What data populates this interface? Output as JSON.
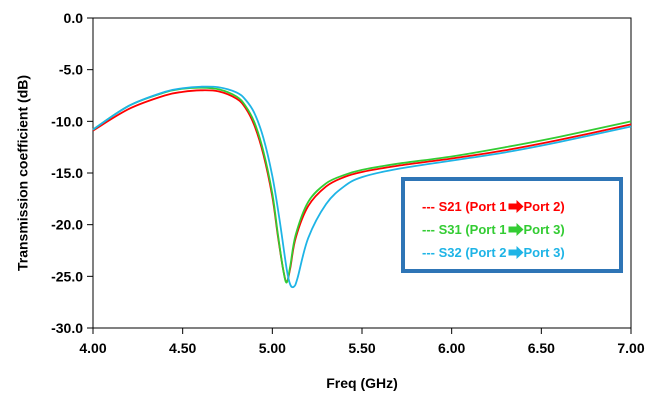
{
  "chart_data": {
    "type": "line",
    "xlabel": "Freq (GHz)",
    "ylabel": "Transmission coefficient (dB)",
    "xlim": [
      4.0,
      7.0
    ],
    "ylim": [
      -30.0,
      0.0
    ],
    "x_ticks": [
      "4.00",
      "4.50",
      "5.00",
      "5.50",
      "6.00",
      "6.50",
      "7.00"
    ],
    "y_ticks": [
      "0.0",
      "-5.0",
      "-10.0",
      "-15.0",
      "-20.0",
      "-25.0",
      "-30.0"
    ],
    "grid": false,
    "legend_placement": "right-center",
    "legend_border_color": "#2e75b6",
    "series": [
      {
        "label": "S21",
        "legend_prefix": "--- ",
        "legend_text": "S21 (Port 1",
        "legend_suffix": " Port 2)",
        "color": "#ff0000",
        "x": [
          4.0,
          4.2,
          4.4,
          4.5,
          4.6,
          4.7,
          4.8,
          4.85,
          4.9,
          4.95,
          5.0,
          5.03,
          5.06,
          5.08,
          5.1,
          5.13,
          5.2,
          5.3,
          5.4,
          5.5,
          5.7,
          6.0,
          6.3,
          6.6,
          7.0
        ],
        "y": [
          -10.9,
          -8.8,
          -7.5,
          -7.15,
          -7.0,
          -7.1,
          -7.8,
          -8.7,
          -10.4,
          -13.2,
          -17.3,
          -21.0,
          -24.3,
          -25.5,
          -24.2,
          -21.3,
          -18.2,
          -16.3,
          -15.4,
          -14.9,
          -14.3,
          -13.6,
          -12.8,
          -11.8,
          -10.3
        ]
      },
      {
        "label": "S31",
        "legend_prefix": "--- ",
        "legend_text": "S31 (Port 1",
        "legend_suffix": " Port 3)",
        "color": "#33cc33",
        "x": [
          4.0,
          4.2,
          4.4,
          4.5,
          4.6,
          4.7,
          4.8,
          4.85,
          4.9,
          4.95,
          5.0,
          5.03,
          5.06,
          5.08,
          5.1,
          5.13,
          5.2,
          5.3,
          5.4,
          5.5,
          5.7,
          6.0,
          6.3,
          6.6,
          7.0
        ],
        "y": [
          -10.8,
          -8.5,
          -7.2,
          -6.85,
          -6.75,
          -6.9,
          -7.6,
          -8.5,
          -10.1,
          -12.9,
          -17.0,
          -20.8,
          -24.3,
          -25.6,
          -24.0,
          -21.0,
          -17.8,
          -16.0,
          -15.2,
          -14.7,
          -14.1,
          -13.4,
          -12.5,
          -11.5,
          -10.0
        ]
      },
      {
        "label": "S32",
        "legend_prefix": "--- ",
        "legend_text": "S32 (Port 2",
        "legend_suffix": " Port 3)",
        "color": "#1eb4e6",
        "x": [
          4.0,
          4.2,
          4.4,
          4.5,
          4.6,
          4.7,
          4.8,
          4.85,
          4.9,
          4.95,
          5.0,
          5.04,
          5.08,
          5.1,
          5.12,
          5.14,
          5.2,
          5.3,
          5.4,
          5.5,
          5.7,
          6.0,
          6.3,
          6.6,
          7.0
        ],
        "y": [
          -10.8,
          -8.5,
          -7.15,
          -6.8,
          -6.65,
          -6.7,
          -7.2,
          -7.9,
          -9.2,
          -11.6,
          -15.3,
          -19.5,
          -24.3,
          -25.8,
          -26.0,
          -25.2,
          -21.3,
          -18.0,
          -16.3,
          -15.4,
          -14.6,
          -13.8,
          -13.0,
          -12.0,
          -10.5
        ]
      }
    ]
  }
}
